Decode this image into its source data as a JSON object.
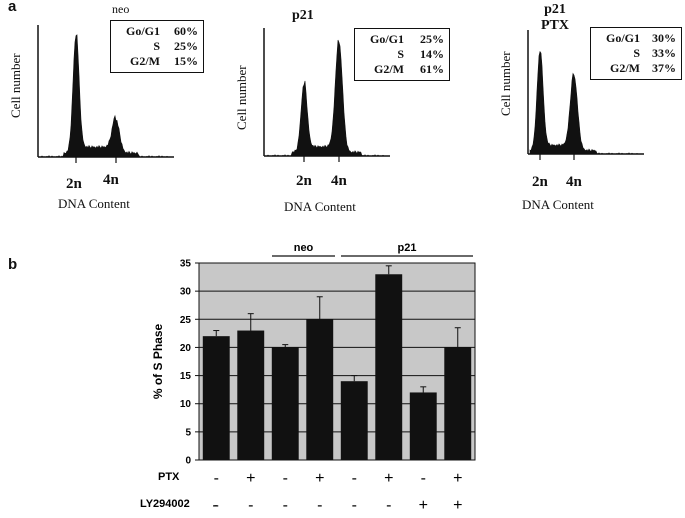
{
  "panel_a_label": "a",
  "panel_b_label": "b",
  "histograms": [
    {
      "title_lines": [
        "neo"
      ],
      "title_style": "plain",
      "ylabel": "Cell number",
      "xlabel": "DNA Content",
      "ticks": [
        "2n",
        "4n"
      ],
      "stats": [
        {
          "phase": "Go/G1",
          "value": "60%"
        },
        {
          "phase": "S",
          "value": "25%"
        },
        {
          "phase": "G2/M",
          "value": "15%"
        }
      ],
      "peaks": {
        "g1": 1.0,
        "g2": 0.28
      }
    },
    {
      "title_lines": [
        "p21"
      ],
      "title_style": "bold",
      "ylabel": "Cell number",
      "xlabel": "DNA Content",
      "ticks": [
        "2n",
        "4n"
      ],
      "stats": [
        {
          "phase": "Go/G1",
          "value": "25%"
        },
        {
          "phase": "S",
          "value": "14%"
        },
        {
          "phase": "G2/M",
          "value": "61%"
        }
      ],
      "peaks": {
        "g1": 0.62,
        "g2": 1.0
      }
    },
    {
      "title_lines": [
        "p21",
        "PTX"
      ],
      "title_style": "bold",
      "ylabel": "Cell number",
      "xlabel": "DNA Content",
      "ticks": [
        "2n",
        "4n"
      ],
      "stats": [
        {
          "phase": "Go/G1",
          "value": "30%"
        },
        {
          "phase": "S",
          "value": "33%"
        },
        {
          "phase": "G2/M",
          "value": "37%"
        }
      ],
      "peaks": {
        "g1": 0.95,
        "g2": 0.72
      }
    }
  ],
  "chart_data": {
    "type": "bar",
    "ylabel": "% of S Phase",
    "ylim": [
      0,
      35
    ],
    "yticks": [
      "0",
      "5",
      "10",
      "15",
      "20",
      "25",
      "30",
      "35"
    ],
    "grid": true,
    "values": [
      22,
      23,
      20,
      25,
      14,
      33,
      12,
      20
    ],
    "errors": [
      1,
      3,
      0.5,
      4,
      1,
      1.5,
      1,
      3.5
    ],
    "groups": [
      {
        "label": "neo",
        "from": 2,
        "to": 3
      },
      {
        "label": "p21",
        "from": 4,
        "to": 7
      }
    ],
    "conditions": [
      {
        "label": "PTX",
        "signs": [
          "-",
          "+",
          "-",
          "+",
          "-",
          "+",
          "-",
          "+"
        ]
      },
      {
        "label": "LY294002",
        "signs": [
          "-",
          "-",
          "-",
          "-",
          "-",
          "-",
          "+",
          "+"
        ]
      }
    ],
    "colors": {
      "bar": "#111111",
      "plot_bg": "#c8c8c8",
      "grid": "#111111"
    }
  }
}
